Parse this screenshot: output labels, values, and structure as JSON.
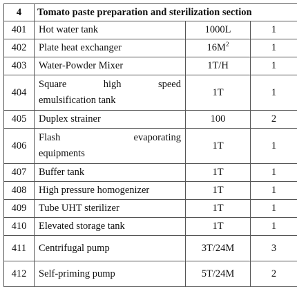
{
  "section": {
    "number": "4",
    "title": "Tomato paste preparation and sterilization section"
  },
  "rows": [
    {
      "no": "401",
      "name": "Hot water tank",
      "spec": "1000L",
      "qty": "1"
    },
    {
      "no": "402",
      "name": "Plate heat exchanger",
      "spec": "16M",
      "spec_sup": "2",
      "qty": "1"
    },
    {
      "no": "403",
      "name": "Water-Powder Mixer",
      "spec": "1T/H",
      "qty": "1"
    },
    {
      "no": "404",
      "name_line1": "Square high speed",
      "name_line2": "emulsification tank",
      "spec": "1T",
      "qty": "1"
    },
    {
      "no": "405",
      "name": "Duplex strainer",
      "spec": "100",
      "qty": "2"
    },
    {
      "no": "406",
      "name_line1": "Flash evaporating",
      "name_line2": "equipments",
      "spec": "1T",
      "qty": "1"
    },
    {
      "no": "407",
      "name": "Buffer tank",
      "spec": "1T",
      "qty": "1"
    },
    {
      "no": "408",
      "name": "High pressure homogenizer",
      "spec": "1T",
      "qty": "1"
    },
    {
      "no": "409",
      "name": "Tube UHT sterilizer",
      "spec": "1T",
      "qty": "1"
    },
    {
      "no": "410",
      "name": "Elevated storage tank",
      "spec": "1T",
      "qty": "1"
    },
    {
      "no": "411",
      "name": "Centrifugal pump",
      "spec": "3T/24M",
      "qty": "3"
    },
    {
      "no": "412",
      "name": "Self-priming pump",
      "spec": "5T/24M",
      "qty": "2"
    }
  ]
}
